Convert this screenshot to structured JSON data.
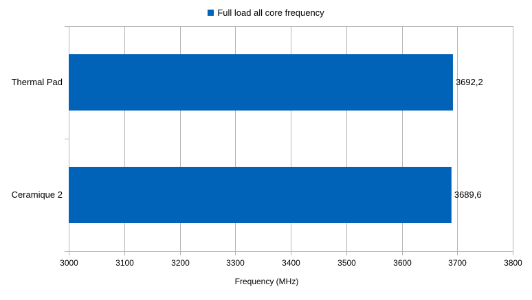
{
  "chart_data": {
    "type": "bar",
    "orientation": "horizontal",
    "legend_position": "top",
    "grid": true,
    "categories": [
      "Thermal Pad",
      "Ceramique 2"
    ],
    "series": [
      {
        "name": "Full load all core frequency",
        "values": [
          3692.2,
          3689.6
        ],
        "data_labels": [
          "3692,2",
          "3689,6"
        ],
        "color": "#0063b8"
      }
    ],
    "xlabel": "Frequency (MHz)",
    "ylabel": "",
    "xlim": [
      3000,
      3800
    ],
    "xticks": [
      3000,
      3100,
      3200,
      3300,
      3400,
      3500,
      3600,
      3700,
      3800
    ]
  },
  "colors": {
    "bar": "#0063b8",
    "grid": "#b3b3b3"
  }
}
